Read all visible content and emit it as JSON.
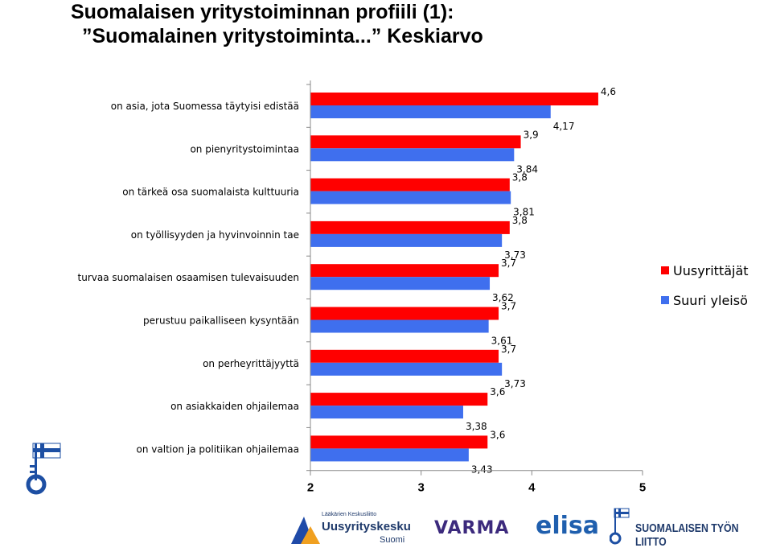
{
  "title": {
    "line1": "Suomalaisen yritystoiminnan profiili (1):",
    "line2": "”Suomalainen yritystoiminta...” Keskiarvo"
  },
  "chart_data": {
    "type": "bar",
    "orientation": "horizontal",
    "categories": [
      "on asia, jota Suomessa täytyisi edistää",
      "on pienyritystoimintaa",
      "on tärkeä osa suomalaista kulttuuria",
      "on työllisyyden ja hyvinvoinnin tae",
      "turvaa suomalaisen osaamisen tulevaisuuden",
      "perustuu paikalliseen kysyntään",
      "on perheyrittäjyyttä",
      "on asiakkaiden ohjailemaa",
      "on valtion ja politiikan ohjailemaa"
    ],
    "series": [
      {
        "name": "Uusyrittäjät",
        "color": "#ff0000",
        "values": [
          4.6,
          3.9,
          3.8,
          3.8,
          3.7,
          3.7,
          3.7,
          3.6,
          3.6
        ],
        "labels": [
          "4,6",
          "3,9",
          "3,8",
          "3,8",
          "3,7",
          "3,7",
          "3,7",
          "3,6",
          "3,6"
        ]
      },
      {
        "name": "Suuri yleisö",
        "color": "#3f6fee",
        "values": [
          4.17,
          3.84,
          3.81,
          3.73,
          3.62,
          3.61,
          3.73,
          3.38,
          3.43
        ],
        "labels": [
          "4,17",
          "3,84",
          "3,81",
          "3,73",
          "3,62",
          "3,61",
          "3,73",
          "3,38",
          "3,43"
        ]
      }
    ],
    "xlim": [
      2,
      5
    ],
    "xticks": [
      2,
      3,
      4,
      5
    ],
    "xtick_labels": [
      "2",
      "3",
      "4",
      "5"
    ],
    "legend_position": "right",
    "grid": false
  },
  "footer": {
    "logos": {
      "ury_small": "Lääkärien Keskusliitto",
      "ury_main": "Uusyrityskeskukset",
      "ury_sub": "Suomi",
      "varma": "VARMA",
      "elisa": "elisa",
      "stl": "SUOMALAISEN TYÖN LIITTO"
    }
  }
}
